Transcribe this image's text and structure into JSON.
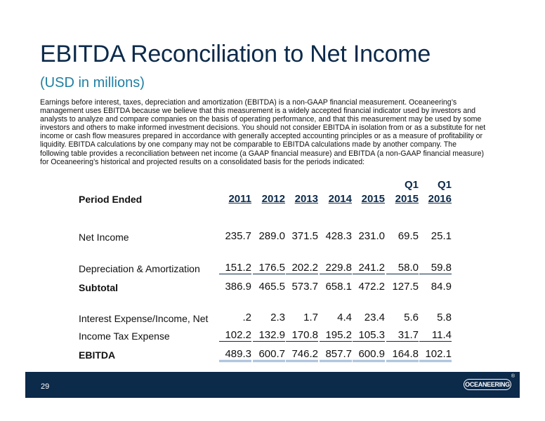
{
  "title": "EBITDA Reconciliation to Net Income",
  "subtitle": "(USD in millions)",
  "paragraph_lines": [
    "Earnings before interest, taxes, depreciation and amortization (EBITDA) is a non-GAAP financial measurement.  Oceaneering’s",
    "management uses EBITDA because we believe that this measurement is a widely accepted financial indicator used by investors and",
    "analysts to analyze and compare companies on the basis of operating performance, and that this measurement may be used by some",
    "investors and others to make informed investment decisions.  You should not consider EBITDA in isolation from or as a substitute for net",
    "income or cash flow measures prepared in accordance with generally accepted accounting principles or as a measure of profitability or",
    "liquidity.  EBITDA calculations by one company may not be comparable to EBITDA calculations made by another company.  The",
    "following table provides a reconciliation between net income (a GAAP financial measure) and EBITDA (a non-GAAP financial measure)",
    "for Oceaneering’s historical and projected results on a consolidated basis for the periods indicated:"
  ],
  "table": {
    "period_label": "Period Ended",
    "columns": [
      {
        "top": "",
        "bottom": "2011"
      },
      {
        "top": "",
        "bottom": "2012"
      },
      {
        "top": "",
        "bottom": "2013"
      },
      {
        "top": "",
        "bottom": "2014"
      },
      {
        "top": "",
        "bottom": "2015"
      },
      {
        "top": "Q1",
        "bottom": "2015"
      },
      {
        "top": "Q1",
        "bottom": "2016"
      }
    ],
    "rows": [
      {
        "label": "Net Income",
        "values": [
          "235.7",
          "289.0",
          "371.5",
          "428.3",
          "231.0",
          "69.5",
          "25.1"
        ]
      },
      {
        "label": "Depreciation & Amortization",
        "values": [
          "151.2",
          "176.5",
          "202.2",
          "229.8",
          "241.2",
          "58.0",
          "59.8"
        ]
      },
      {
        "label": "Subtotal",
        "values": [
          "386.9",
          "465.5",
          "573.7",
          "658.1",
          "472.2",
          "127.5",
          "84.9"
        ]
      },
      {
        "label": "Interest Expense/Income, Net",
        "values": [
          ".2",
          "2.3",
          "1.7",
          "4.4",
          "23.4",
          "5.6",
          "5.8"
        ]
      },
      {
        "label": "Income Tax Expense",
        "values": [
          "102.2",
          "132.9",
          "170.8",
          "195.2",
          "105.3",
          "31.7",
          "11.4"
        ]
      },
      {
        "label": "EBITDA",
        "values": [
          "489.3",
          "600.7",
          "746.2",
          "857.7",
          "600.9",
          "164.8",
          "102.1"
        ]
      }
    ]
  },
  "footer": {
    "page_number": "29",
    "logo_text": "OCEANEERING",
    "registered_mark": "®"
  }
}
